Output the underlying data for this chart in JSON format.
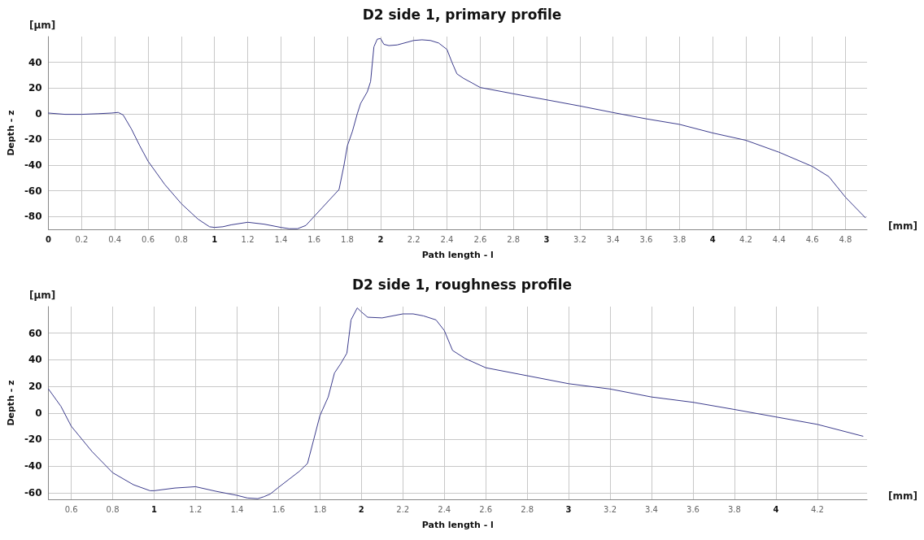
{
  "chart_data": [
    {
      "type": "line",
      "title": "D2 side 1, primary profile",
      "xlabel": "Path length - l",
      "ylabel": "Depth - z",
      "annotations": [
        "[µm]",
        "[mm]"
      ],
      "xlim": [
        0,
        4.93
      ],
      "xticks": [
        0,
        0.2,
        0.4,
        0.6,
        0.8,
        1,
        1.2,
        1.4,
        1.6,
        1.8,
        2,
        2.2,
        2.4,
        2.6,
        2.8,
        3,
        3.2,
        3.4,
        3.6,
        3.8,
        4,
        4.2,
        4.4,
        4.6,
        4.8
      ],
      "ylim": [
        -90,
        60
      ],
      "yticks": [
        -80,
        -60,
        -40,
        -20,
        0,
        20,
        40
      ],
      "grid": true,
      "marker": "none",
      "line_style": "solid",
      "series": [
        {
          "color": "#3c3c8c",
          "x": [
            0,
            0.1,
            0.2,
            0.3,
            0.38,
            0.42,
            0.45,
            0.5,
            0.55,
            0.6,
            0.7,
            0.8,
            0.9,
            0.97,
            1.0,
            1.05,
            1.1,
            1.2,
            1.3,
            1.4,
            1.45,
            1.5,
            1.55,
            1.6,
            1.65,
            1.7,
            1.75,
            1.78,
            1.8,
            1.83,
            1.86,
            1.88,
            1.92,
            1.94,
            1.96,
            1.98,
            2.0,
            2.02,
            2.05,
            2.1,
            2.2,
            2.25,
            2.3,
            2.35,
            2.4,
            2.43,
            2.46,
            2.5,
            2.55,
            2.6,
            2.8,
            3.0,
            3.2,
            3.4,
            3.6,
            3.8,
            4.0,
            4.2,
            4.4,
            4.6,
            4.7,
            4.8,
            4.92
          ],
          "values": [
            0.5,
            -0.5,
            -0.5,
            0,
            0.5,
            1,
            -1,
            -12,
            -25,
            -37,
            -55,
            -70,
            -82,
            -88,
            -88.5,
            -88,
            -86.5,
            -84.5,
            -86,
            -88.5,
            -89.5,
            -89.5,
            -87,
            -80,
            -73,
            -66,
            -59,
            -40,
            -25,
            -14,
            0,
            8,
            17,
            25,
            52,
            58,
            58.5,
            54,
            53,
            53.5,
            57,
            57.5,
            57,
            55,
            50,
            40,
            31,
            27.5,
            24,
            20.4,
            15.5,
            10.8,
            6,
            0.9,
            -4,
            -8.3,
            -15,
            -20.7,
            -30,
            -41,
            -49,
            -65,
            -81
          ]
        }
      ]
    },
    {
      "type": "line",
      "title": "D2 side 1, roughness profile",
      "xlabel": "Path length - l",
      "ylabel": "Depth - z",
      "annotations": [
        "[µm]",
        "[mm]"
      ],
      "xlim": [
        0.49,
        4.44
      ],
      "xticks": [
        0.6,
        0.8,
        1,
        1.2,
        1.4,
        1.6,
        1.8,
        2,
        2.2,
        2.4,
        2.6,
        2.8,
        3,
        3.2,
        3.4,
        3.6,
        3.8,
        4,
        4.2
      ],
      "ylim": [
        -65,
        80
      ],
      "yticks": [
        -60,
        -40,
        -20,
        0,
        20,
        40,
        60
      ],
      "grid": true,
      "marker": "none",
      "line_style": "solid",
      "series": [
        {
          "color": "#3c3c8c",
          "x": [
            0.49,
            0.55,
            0.6,
            0.7,
            0.8,
            0.9,
            0.98,
            1.0,
            1.1,
            1.2,
            1.3,
            1.4,
            1.45,
            1.5,
            1.53,
            1.56,
            1.6,
            1.65,
            1.7,
            1.74,
            1.77,
            1.8,
            1.84,
            1.87,
            1.9,
            1.93,
            1.95,
            1.98,
            2.0,
            2.03,
            2.1,
            2.2,
            2.25,
            2.3,
            2.36,
            2.4,
            2.44,
            2.5,
            2.6,
            2.8,
            3.0,
            3.2,
            3.4,
            3.6,
            3.8,
            4.0,
            4.2,
            4.42
          ],
          "values": [
            18,
            5,
            -10,
            -29,
            -45,
            -54,
            -58.5,
            -58.5,
            -56.5,
            -55.5,
            -59,
            -62,
            -64,
            -64.5,
            -63,
            -61,
            -56,
            -50,
            -44,
            -38,
            -20,
            -2,
            12,
            30,
            37,
            45,
            70,
            79,
            76,
            72,
            71.5,
            74.5,
            74.5,
            73,
            70,
            62,
            47,
            41,
            34,
            28,
            22,
            18,
            12,
            8,
            2.6,
            -3,
            -8.6,
            -17.5
          ]
        }
      ]
    }
  ]
}
